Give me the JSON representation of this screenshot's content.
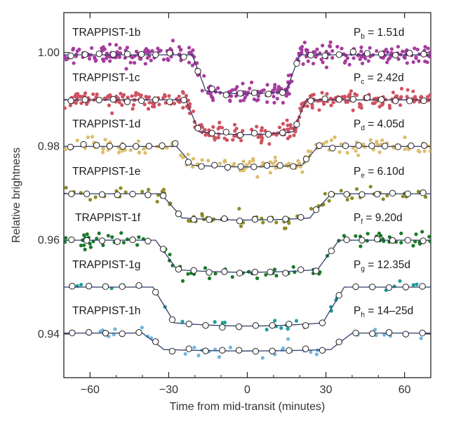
{
  "chart_data": {
    "type": "scatter",
    "xlabel": "Time from mid-transit (minutes)",
    "ylabel": "Relative brightness",
    "xlim": [
      -70,
      70
    ],
    "ylim": [
      0.9307,
      1.0085
    ],
    "x_ticks": [
      -60,
      -30,
      0,
      30,
      60
    ],
    "x_tick_labels": [
      "−60",
      "−30",
      "0",
      "30",
      "60"
    ],
    "y_ticks": [
      1.0,
      0.98,
      0.96,
      0.94
    ],
    "y_tick_labels": [
      "1.00",
      "0.98",
      "0.96",
      "0.94"
    ],
    "grid": false,
    "legend": "none",
    "series": [
      {
        "name": "TRAPPIST-1b",
        "period_text": "P",
        "period_sub": "b",
        "period_value": " = 1.51d",
        "color": "#a63c9e",
        "baseline": 0.9995,
        "depth": 0.0074,
        "t_in": -18.5,
        "t_out": 17.5,
        "ramp": 2.5,
        "scatter": 0.0014,
        "n_points": 320,
        "n_circles": 26
      },
      {
        "name": "TRAPPIST-1c",
        "period_text": "P",
        "period_sub": "c",
        "period_value": " = 2.42d",
        "color": "#cf5361",
        "baseline": 0.9899,
        "depth": 0.0066,
        "t_in": -21,
        "t_out": 20,
        "ramp": 2.5,
        "scatter": 0.0014,
        "n_points": 300,
        "n_circles": 26
      },
      {
        "name": "TRAPPIST-1d",
        "period_text": "P",
        "period_sub": "d",
        "period_value": " = 4.05d",
        "color": "#dcbd6c",
        "baseline": 0.98,
        "depth": 0.0039,
        "t_in": -24,
        "t_out": 24,
        "ramp": 3,
        "scatter": 0.0013,
        "n_points": 140,
        "n_circles": 28
      },
      {
        "name": "TRAPPIST-1e",
        "period_text": "P",
        "period_sub": "e",
        "period_value": " = 6.10d",
        "color": "#8e8a25",
        "baseline": 0.9699,
        "depth": 0.005,
        "t_in": -29,
        "t_out": 28,
        "ramp": 4,
        "scatter": 0.0012,
        "n_points": 75,
        "n_circles": 24
      },
      {
        "name": "TRAPPIST-1f",
        "period_text": "P",
        "period_sub": "f",
        "period_value": " = 9.20d",
        "color": "#1a7a2c",
        "baseline": 0.96,
        "depth": 0.0061,
        "t_in": -31,
        "t_out": 31,
        "ramp": 4,
        "scatter": 0.0012,
        "n_points": 90,
        "n_circles": 24
      },
      {
        "name": "TRAPPIST-1g",
        "period_text": "P",
        "period_sub": "g",
        "period_value": " = 12.35d",
        "color": "#1f9e9a",
        "baseline": 0.95,
        "depth": 0.0074,
        "t_in": -32,
        "t_out": 33,
        "ramp": 4,
        "scatter": 0.0009,
        "n_points": 30,
        "n_circles": 22
      },
      {
        "name": "TRAPPIST-1h",
        "period_text": "P",
        "period_sub": "h",
        "period_value": " = 14–25d",
        "color": "#6fb6de",
        "baseline": 0.9402,
        "depth": 0.0034,
        "t_in": -36,
        "t_out": 36,
        "ramp": 4,
        "scatter": 0.001,
        "n_points": 35,
        "n_circles": 22
      }
    ]
  },
  "colors": {
    "model_line": "#2f3e6b",
    "frame": "#222222",
    "circle_fill": "#ffffff",
    "circle_stroke": "#222222"
  }
}
